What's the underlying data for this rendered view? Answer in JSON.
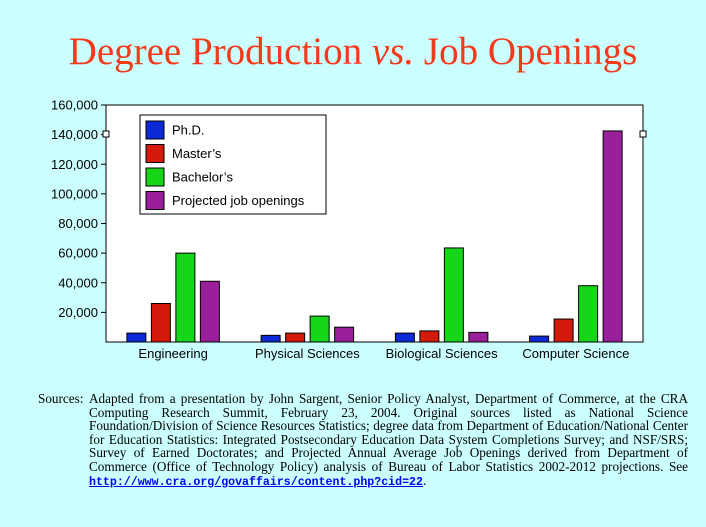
{
  "title": {
    "part1": "Degree Production ",
    "part2": "vs.",
    "part3": " Job Openings"
  },
  "chart_data": {
    "type": "bar",
    "categories": [
      "Engineering",
      "Physical Sciences",
      "Biological Sciences",
      "Computer Science"
    ],
    "series": [
      {
        "name": "Ph.D.",
        "color": "#0b2ad6",
        "values": [
          6000,
          4500,
          6000,
          4000
        ]
      },
      {
        "name": "Master’s",
        "color": "#d41a0a",
        "values": [
          26000,
          6000,
          7500,
          15500
        ]
      },
      {
        "name": "Bachelor’s",
        "color": "#17d61a",
        "values": [
          60000,
          17500,
          63500,
          38000
        ]
      },
      {
        "name": "Projected  job openings",
        "color": "#9a1f9a",
        "values": [
          41000,
          10000,
          6500,
          142500
        ]
      }
    ],
    "ylim": [
      0,
      160000
    ],
    "yticks": [
      "20,000",
      "40,000",
      "60,000",
      "80,000",
      "100,000",
      "120,000",
      "140,000",
      "160,000"
    ],
    "xlabel": "",
    "ylabel": "",
    "grid": false,
    "legend_position": "top-left"
  },
  "sources": {
    "label": "Sources:",
    "text": "Adapted from a presentation by John Sargent, Senior Policy Analyst, Department of Commerce, at the CRA Computing Research Summit, February 23, 2004.  Original sources listed as National Science Foundation/Division of Science Resources Statistics; degree data from Department of Education/National Center for Education Statistics:  Integrated Postsecondary Education Data System Completions Survey; and NSF/SRS; Survey of Earned Doctorates; and Projected Annual Average Job Openings derived from Department of Commerce (Office of Technology Policy) analysis of Bureau of Labor Statistics 2002-2012 projections.  See ",
    "link": "http://www.cra.org/govaffairs/content.php?cid=22",
    "end": "."
  }
}
